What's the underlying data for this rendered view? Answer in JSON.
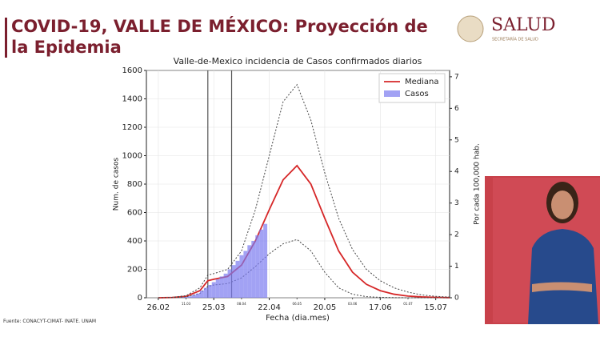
{
  "header": {
    "title": "COVID-19, VALLE DE MÉXICO: Proyección de la Epidemia",
    "logo": "SALUD",
    "logo_subtitle": "SECRETARÍA DE SALUD"
  },
  "source": "Fuente: CONACYT-CIMAT- INATE. UNAM",
  "chart_data": {
    "type": "line",
    "title": "Valle-de-Mexico incidencia de Casos confirmados diarios",
    "x_label": "Fecha (dia.mes)",
    "y_label": "Num. de casos",
    "y2_label": "Por cada 100,000 hab.",
    "xlim": [
      -6,
      147
    ],
    "ylim": [
      0,
      1600
    ],
    "y2lim": [
      0,
      7.2
    ],
    "grid": true,
    "legend": "upper right",
    "xticks": [
      {
        "value": 0,
        "label": "26.02"
      },
      {
        "value": 28,
        "label": "25.03"
      },
      {
        "value": 56,
        "label": "22.04"
      },
      {
        "value": 84,
        "label": "20.05"
      },
      {
        "value": 112,
        "label": "17.06"
      },
      {
        "value": 140,
        "label": "15.07"
      }
    ],
    "xminor_ticks": [
      {
        "value": 14,
        "label": "11.03"
      },
      {
        "value": 42,
        "label": "08.04"
      },
      {
        "value": 70,
        "label": "06.05"
      },
      {
        "value": 98,
        "label": "03.06"
      },
      {
        "value": 126,
        "label": "01.07"
      }
    ],
    "yticks": [
      0,
      200,
      400,
      600,
      800,
      1000,
      1200,
      1400,
      1600
    ],
    "y2ticks": [
      0,
      1,
      2,
      3,
      4,
      5,
      6,
      7
    ],
    "reference_lines": [
      25,
      37
    ],
    "series": [
      {
        "name": "Mediana",
        "color": "#d62728",
        "style": "solid",
        "x": [
          0,
          7,
          14,
          21,
          25,
          28,
          35,
          42,
          49,
          56,
          63,
          70,
          77,
          84,
          91,
          98,
          105,
          112,
          119,
          126,
          133,
          140,
          147
        ],
        "values": [
          0,
          2,
          10,
          50,
          120,
          130,
          150,
          230,
          400,
          620,
          830,
          930,
          800,
          560,
          330,
          180,
          95,
          50,
          25,
          12,
          6,
          3,
          1
        ]
      },
      {
        "color": "#444444",
        "style": "dotted",
        "x": [
          0,
          7,
          14,
          21,
          25,
          28,
          35,
          42,
          49,
          56,
          63,
          70,
          77,
          84,
          91,
          98,
          105,
          112,
          119,
          126,
          133,
          140,
          147
        ],
        "values": [
          0,
          3,
          15,
          70,
          160,
          170,
          200,
          330,
          620,
          1000,
          1380,
          1500,
          1250,
          880,
          560,
          340,
          200,
          120,
          70,
          40,
          20,
          10,
          5
        ]
      },
      {
        "color": "#444444",
        "style": "dotted",
        "x": [
          0,
          7,
          14,
          21,
          25,
          28,
          35,
          42,
          49,
          56,
          63,
          70,
          77,
          84,
          91,
          98,
          105,
          112,
          119,
          126,
          133,
          140,
          147
        ],
        "values": [
          0,
          1,
          6,
          30,
          80,
          90,
          100,
          140,
          220,
          310,
          380,
          410,
          330,
          180,
          70,
          25,
          8,
          3,
          1,
          0,
          0,
          0,
          0
        ]
      },
      {
        "name": "Casos",
        "color": "#7b7bef",
        "style": "bar",
        "x": [
          12,
          14,
          16,
          18,
          20,
          22,
          24,
          26,
          28,
          30,
          32,
          34,
          36,
          38,
          40,
          42,
          44,
          46,
          48,
          50,
          52,
          54
        ],
        "values": [
          2,
          5,
          10,
          20,
          30,
          50,
          70,
          90,
          110,
          130,
          150,
          170,
          200,
          230,
          260,
          300,
          330,
          370,
          400,
          440,
          480,
          520
        ]
      }
    ]
  }
}
